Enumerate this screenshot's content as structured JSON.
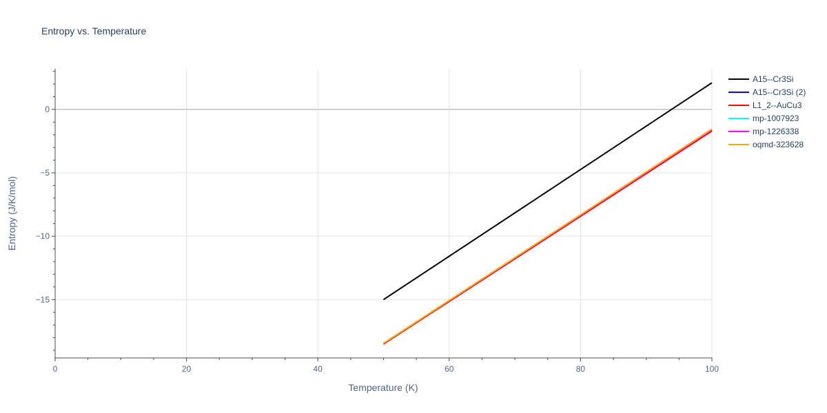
{
  "chart_data": {
    "type": "line",
    "title": "Entropy vs. Temperature",
    "xlabel": "Temperature (K)",
    "ylabel": "Entropy (J/K/mol)",
    "xlim": [
      0,
      100
    ],
    "ylim": [
      -19.6,
      3.2
    ],
    "xticks": [
      0,
      20,
      40,
      60,
      80,
      100
    ],
    "xtick_labels": [
      "0",
      "20",
      "40",
      "60",
      "80",
      "100"
    ],
    "yticks": [
      -15,
      -10,
      -5,
      0
    ],
    "ytick_labels": [
      "−15",
      "−10",
      "−5",
      "0"
    ],
    "grid": true,
    "legend_position": "right",
    "series": [
      {
        "name": "A15--Cr3Si",
        "color": "#000000",
        "x": [
          50,
          100
        ],
        "y": [
          -15.0,
          2.1
        ]
      },
      {
        "name": "A15--Cr3Si (2)",
        "color": "#0000ff",
        "x": [
          50,
          100
        ],
        "y": [
          -18.5,
          -1.7
        ]
      },
      {
        "name": "L1_2--AuCu3",
        "color": "#ff0000",
        "x": [
          50,
          100
        ],
        "y": [
          -18.5,
          -1.7
        ]
      },
      {
        "name": "mp-1007923",
        "color": "#00ffff",
        "x": [
          50,
          100
        ],
        "y": [
          -18.45,
          -1.6
        ]
      },
      {
        "name": "mp-1226338",
        "color": "#ff00ff",
        "x": [
          50,
          100
        ],
        "y": [
          -18.45,
          -1.6
        ]
      },
      {
        "name": "oqmd-323628",
        "color": "#ffa500",
        "x": [
          50,
          100
        ],
        "y": [
          -18.45,
          -1.55
        ]
      }
    ]
  }
}
